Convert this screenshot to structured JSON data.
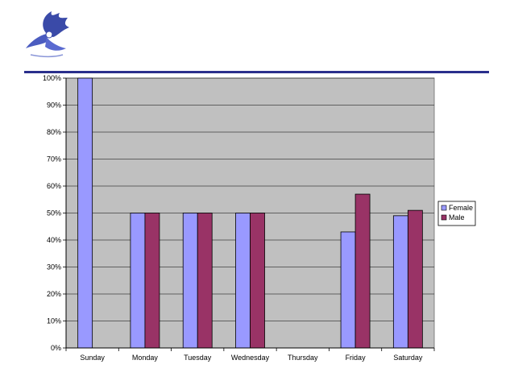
{
  "logo": {
    "icon": "eagle-logo-icon"
  },
  "colors": {
    "female": "#9999ff",
    "male": "#993366",
    "plot_bg": "#c0c0c0",
    "rule": "#2a2f8c"
  },
  "chart_data": {
    "type": "bar",
    "categories": [
      "Sunday",
      "Monday",
      "Tuesday",
      "Wednesday",
      "Thursday",
      "Friday",
      "Saturday"
    ],
    "series": [
      {
        "name": "Female",
        "values": [
          100,
          50,
          50,
          50,
          0,
          43,
          49
        ]
      },
      {
        "name": "Male",
        "values": [
          0,
          50,
          50,
          50,
          0,
          57,
          51
        ]
      }
    ],
    "yticks": [
      "0%",
      "10%",
      "20%",
      "30%",
      "40%",
      "50%",
      "60%",
      "70%",
      "80%",
      "90%",
      "100%"
    ],
    "ylim": [
      0,
      100
    ],
    "grid": true,
    "legend": "right"
  }
}
